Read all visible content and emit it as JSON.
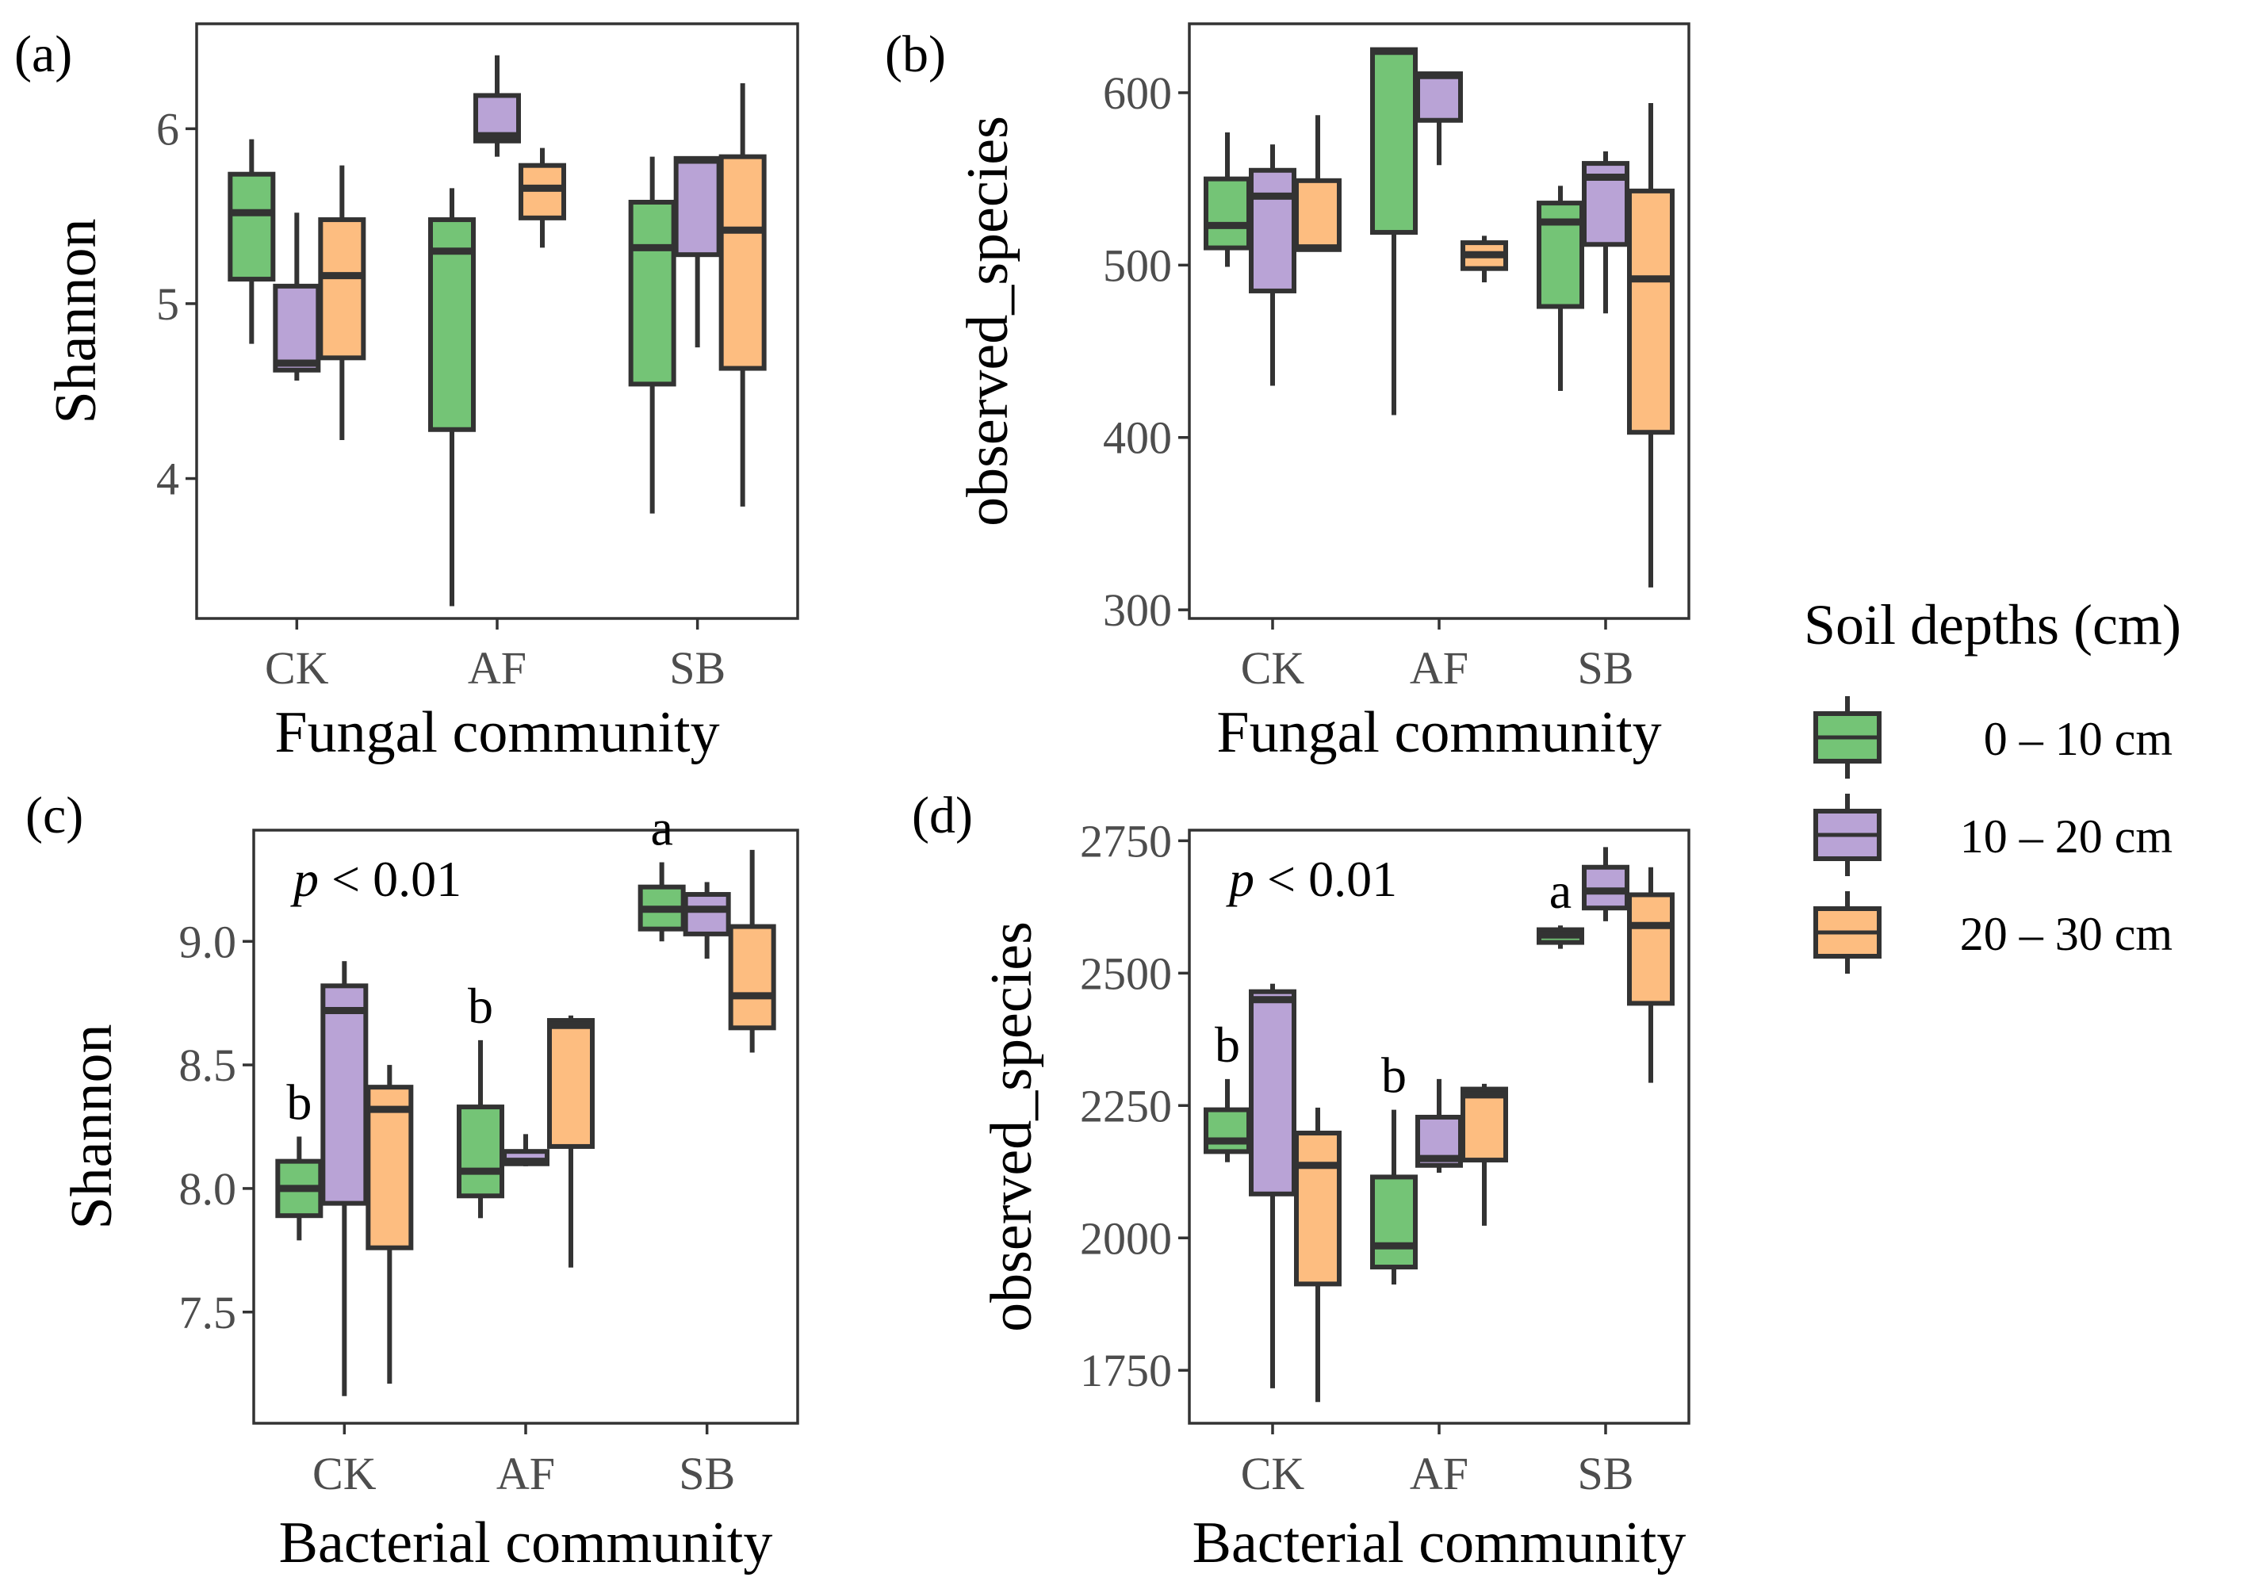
{
  "legend": {
    "title": "Soil depths (cm)",
    "items": [
      {
        "label": "0 – 10 cm",
        "color": "#74c476"
      },
      {
        "label": "10 – 20 cm",
        "color": "#b9a3d6"
      },
      {
        "label": "20 – 30 cm",
        "color": "#fdbd80"
      }
    ]
  },
  "chart_data": [
    {
      "type": "box",
      "panel": "(a)",
      "xlabel": "Fungal community",
      "ylabel": "Shannon",
      "categories": [
        "CK",
        "AF",
        "SB"
      ],
      "ylim": [
        3.2,
        6.6
      ],
      "yticks": [
        4,
        5,
        6
      ],
      "yticklabels": [
        "4",
        "5",
        "6"
      ],
      "annotation": "",
      "letters": [],
      "series": [
        {
          "name": "0 – 10 cm",
          "boxes": [
            [
              4.77,
              5.14,
              5.52,
              5.74,
              5.94
            ],
            [
              3.27,
              4.28,
              5.3,
              5.48,
              5.66
            ],
            [
              3.8,
              4.54,
              5.32,
              5.58,
              5.84
            ]
          ]
        },
        {
          "name": "10 – 20 cm",
          "boxes": [
            [
              4.56,
              4.62,
              4.66,
              5.1,
              5.52
            ],
            [
              5.84,
              5.93,
              5.96,
              6.19,
              6.42
            ],
            [
              4.75,
              5.28,
              5.82,
              5.83,
              5.84
            ]
          ]
        },
        {
          "name": "20 – 30 cm",
          "boxes": [
            [
              4.22,
              4.69,
              5.16,
              5.48,
              5.79
            ],
            [
              5.32,
              5.49,
              5.66,
              5.79,
              5.89
            ],
            [
              3.84,
              4.63,
              5.42,
              5.84,
              6.26
            ]
          ]
        }
      ]
    },
    {
      "type": "box",
      "panel": "(b)",
      "xlabel": "Fungal community",
      "ylabel": "observed_species",
      "categories": [
        "CK",
        "AF",
        "SB"
      ],
      "ylim": [
        295,
        640
      ],
      "yticks": [
        300,
        400,
        500,
        600
      ],
      "yticklabels": [
        "300",
        "400",
        "500",
        "600"
      ],
      "annotation": "",
      "letters": [],
      "series": [
        {
          "name": "0 – 10 cm",
          "boxes": [
            [
              499,
              510,
              523,
              550,
              577
            ],
            [
              413,
              519,
              624,
              625,
              626
            ],
            [
              427,
              476,
              525,
              536,
              546
            ]
          ]
        },
        {
          "name": "10 – 20 cm",
          "boxes": [
            [
              430,
              485,
              540,
              555,
              570
            ],
            [
              558,
              584,
              610,
              611,
              612
            ],
            [
              472,
              512,
              551,
              559,
              566
            ]
          ]
        },
        {
          "name": "20 – 30 cm",
          "boxes": [
            [
              508,
              509,
              510,
              549,
              587
            ],
            [
              490,
              498,
              506,
              513,
              517
            ],
            [
              313,
              403,
              492,
              543,
              594
            ]
          ]
        }
      ]
    },
    {
      "type": "box",
      "panel": "(c)",
      "xlabel": "Bacterial community",
      "ylabel": "Shannon",
      "categories": [
        "CK",
        "AF",
        "SB"
      ],
      "ylim": [
        7.05,
        9.45
      ],
      "yticks": [
        7.5,
        8.0,
        8.5,
        9.0
      ],
      "yticklabels": [
        "7.5",
        "8.0",
        "8.5",
        "9.0"
      ],
      "annotation": "p < 0.01",
      "letters": [
        "b",
        "b",
        "a"
      ],
      "series": [
        {
          "name": "0 – 10 cm",
          "boxes": [
            [
              7.79,
              7.89,
              8.0,
              8.11,
              8.21
            ],
            [
              7.88,
              7.97,
              8.07,
              8.33,
              8.6
            ],
            [
              9.0,
              9.05,
              9.13,
              9.22,
              9.32
            ]
          ]
        },
        {
          "name": "10 – 20 cm",
          "boxes": [
            [
              7.16,
              7.94,
              8.72,
              8.82,
              8.92
            ],
            [
              8.09,
              8.1,
              8.11,
              8.15,
              8.22
            ],
            [
              8.93,
              9.03,
              9.13,
              9.19,
              9.24
            ]
          ]
        },
        {
          "name": "20 – 30 cm",
          "boxes": [
            [
              7.21,
              7.76,
              8.32,
              8.41,
              8.5
            ],
            [
              7.68,
              8.17,
              8.66,
              8.68,
              8.7
            ],
            [
              8.55,
              8.65,
              8.78,
              9.06,
              9.37
            ]
          ]
        }
      ]
    },
    {
      "type": "box",
      "panel": "(d)",
      "xlabel": "Bacterial community",
      "ylabel": "observed_species",
      "categories": [
        "CK",
        "AF",
        "SB"
      ],
      "ylim": [
        1650,
        2770
      ],
      "yticks": [
        1750,
        2000,
        2250,
        2500,
        2750
      ],
      "yticklabels": [
        "1750",
        "2000",
        "2250",
        "2500",
        "2750"
      ],
      "annotation": "p < 0.01",
      "letters": [
        "b",
        "b",
        "a"
      ],
      "series": [
        {
          "name": "0 – 10 cm",
          "boxes": [
            [
              2143,
              2163,
              2183,
              2242,
              2300
            ],
            [
              1912,
              1945,
              1985,
              2115,
              2242
            ],
            [
              2546,
              2558,
              2572,
              2582,
              2590
            ]
          ]
        },
        {
          "name": "10 – 20 cm",
          "boxes": [
            [
              1716,
              2083,
              2450,
              2465,
              2480
            ],
            [
              2123,
              2137,
              2150,
              2228,
              2300
            ],
            [
              2598,
              2623,
              2655,
              2700,
              2738
            ]
          ]
        },
        {
          "name": "20 – 30 cm",
          "boxes": [
            [
              1690,
              1913,
              2137,
              2198,
              2246
            ],
            [
              2023,
              2147,
              2270,
              2281,
              2291
            ],
            [
              2293,
              2443,
              2590,
              2648,
              2700
            ]
          ]
        }
      ]
    }
  ]
}
